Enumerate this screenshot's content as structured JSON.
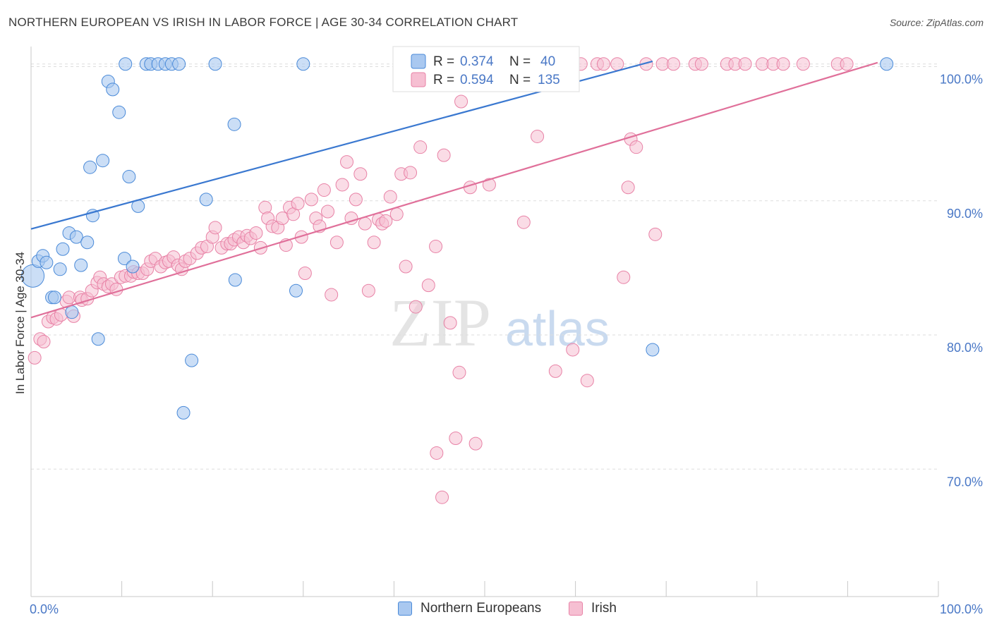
{
  "header": {
    "title": "NORTHERN EUROPEAN VS IRISH IN LABOR FORCE | AGE 30-34 CORRELATION CHART",
    "source": "Source: ZipAtlas.com"
  },
  "watermark": {
    "zip": "ZIP",
    "atlas": "atlas"
  },
  "colors": {
    "blue_fill": "#a9c8f0",
    "blue_stroke": "#4a8ad8",
    "blue_line": "#3a78d0",
    "pink_fill": "#f6bfd2",
    "pink_stroke": "#e882a6",
    "pink_line": "#e0709a",
    "tick_text": "#4a78c6",
    "grid": "#dddddd"
  },
  "legend": {
    "rows": [
      {
        "r_label": "R = ",
        "r_value": "0.374",
        "n_label": "N = ",
        "n_value": "40"
      },
      {
        "r_label": "R = ",
        "r_value": "0.594",
        "n_label": "N = ",
        "n_value": "135"
      }
    ]
  },
  "bottom_legend": [
    "Northern Europeans",
    "Irish"
  ],
  "chart_data": {
    "type": "scatter",
    "title": "NORTHERN EUROPEAN VS IRISH IN LABOR FORCE | AGE 30-34 CORRELATION CHART",
    "xlabel": "",
    "ylabel": "In Labor Force | Age 30-34",
    "xlim": [
      0,
      100
    ],
    "ylim": [
      60.5,
      101.5
    ],
    "x_tick_labels": [
      "0.0%",
      "100.0%"
    ],
    "y_ticks": [
      70,
      80,
      90,
      100
    ],
    "y_tick_labels": [
      "70.0%",
      "80.0%",
      "90.0%",
      "100.0%"
    ],
    "grid": true,
    "legend_position": "top-center",
    "series": [
      {
        "name": "Northern Europeans",
        "r": 0.374,
        "n": 40,
        "trend": {
          "x": [
            0,
            68.5
          ],
          "y": [
            87.9,
            100.4
          ]
        },
        "points": [
          [
            0.2,
            84.4,
            16
          ],
          [
            0.8,
            85.5,
            9
          ],
          [
            1.3,
            85.9,
            9
          ],
          [
            1.7,
            85.4,
            9
          ],
          [
            2.3,
            82.8,
            9
          ],
          [
            2.6,
            82.8,
            9
          ],
          [
            3.2,
            84.9,
            9
          ],
          [
            3.5,
            86.4,
            9
          ],
          [
            4.2,
            87.6,
            9
          ],
          [
            4.5,
            81.7,
            9
          ],
          [
            5.0,
            87.3,
            9
          ],
          [
            5.5,
            85.2,
            9
          ],
          [
            6.2,
            86.9,
            9
          ],
          [
            6.5,
            92.5,
            9
          ],
          [
            6.8,
            88.9,
            9
          ],
          [
            7.4,
            79.7,
            9
          ],
          [
            7.9,
            93.0,
            9
          ],
          [
            8.5,
            98.9,
            9
          ],
          [
            9.0,
            98.3,
            9
          ],
          [
            9.7,
            96.6,
            9
          ],
          [
            10.3,
            85.7,
            9
          ],
          [
            10.4,
            100.2,
            9
          ],
          [
            10.8,
            91.8,
            9
          ],
          [
            11.2,
            85.1,
            9
          ],
          [
            11.8,
            89.6,
            9
          ],
          [
            12.7,
            100.2,
            9
          ],
          [
            13.2,
            100.2,
            9
          ],
          [
            14.0,
            100.2,
            9
          ],
          [
            14.8,
            100.2,
            9
          ],
          [
            15.5,
            100.2,
            9
          ],
          [
            16.3,
            100.2,
            9
          ],
          [
            16.8,
            74.2,
            9
          ],
          [
            17.7,
            78.1,
            9
          ],
          [
            19.3,
            90.1,
            9
          ],
          [
            20.3,
            100.2,
            9
          ],
          [
            22.4,
            95.7,
            9
          ],
          [
            22.5,
            84.1,
            9
          ],
          [
            29.2,
            83.3,
            9
          ],
          [
            30.0,
            100.2,
            9
          ],
          [
            68.5,
            78.9,
            9
          ],
          [
            94.3,
            100.2,
            9
          ]
        ]
      },
      {
        "name": "Irish",
        "r": 0.594,
        "n": 135,
        "trend": {
          "x": [
            0,
            93.3
          ],
          "y": [
            81.3,
            100.3
          ]
        },
        "points": [
          [
            0.4,
            78.3
          ],
          [
            1.0,
            79.7
          ],
          [
            1.4,
            79.5
          ],
          [
            1.9,
            81.0
          ],
          [
            2.4,
            81.3
          ],
          [
            2.8,
            81.2
          ],
          [
            3.3,
            81.5
          ],
          [
            3.9,
            82.5
          ],
          [
            4.2,
            82.8
          ],
          [
            4.7,
            81.4
          ],
          [
            5.4,
            82.8
          ],
          [
            5.6,
            82.6
          ],
          [
            6.2,
            82.7
          ],
          [
            6.7,
            83.3
          ],
          [
            7.3,
            83.9
          ],
          [
            7.6,
            84.3
          ],
          [
            8.0,
            83.8
          ],
          [
            8.5,
            83.6
          ],
          [
            8.9,
            83.8
          ],
          [
            9.4,
            83.4
          ],
          [
            9.9,
            84.3
          ],
          [
            10.4,
            84.4
          ],
          [
            11.0,
            84.4
          ],
          [
            11.3,
            84.7
          ],
          [
            11.8,
            84.6
          ],
          [
            12.3,
            84.6
          ],
          [
            12.8,
            84.9
          ],
          [
            13.2,
            85.5
          ],
          [
            13.7,
            85.7
          ],
          [
            14.3,
            85.1
          ],
          [
            14.8,
            85.4
          ],
          [
            15.2,
            85.5
          ],
          [
            15.7,
            85.8
          ],
          [
            16.2,
            85.2
          ],
          [
            16.6,
            84.9
          ],
          [
            17.0,
            85.5
          ],
          [
            17.5,
            85.7
          ],
          [
            18.3,
            86.1
          ],
          [
            18.8,
            86.5
          ],
          [
            19.4,
            86.6
          ],
          [
            20.0,
            87.3
          ],
          [
            20.3,
            88.0
          ],
          [
            21.0,
            86.5
          ],
          [
            21.6,
            86.8
          ],
          [
            22.0,
            86.8
          ],
          [
            22.4,
            87.1
          ],
          [
            22.9,
            87.3
          ],
          [
            23.4,
            86.9
          ],
          [
            23.8,
            87.4
          ],
          [
            24.2,
            87.2
          ],
          [
            24.8,
            87.6
          ],
          [
            25.3,
            86.5
          ],
          [
            25.8,
            89.5
          ],
          [
            26.1,
            88.7
          ],
          [
            26.6,
            88.1
          ],
          [
            27.2,
            88.0
          ],
          [
            27.7,
            88.7
          ],
          [
            28.1,
            86.7
          ],
          [
            28.5,
            89.5
          ],
          [
            28.9,
            89.0
          ],
          [
            29.4,
            89.8
          ],
          [
            29.8,
            87.3
          ],
          [
            30.2,
            84.6
          ],
          [
            30.9,
            90.1
          ],
          [
            31.4,
            88.7
          ],
          [
            31.8,
            88.1
          ],
          [
            32.3,
            90.8
          ],
          [
            32.7,
            89.2
          ],
          [
            33.1,
            83.0
          ],
          [
            33.7,
            86.9
          ],
          [
            34.3,
            91.2
          ],
          [
            34.8,
            92.9
          ],
          [
            35.3,
            88.7
          ],
          [
            35.8,
            90.1
          ],
          [
            36.3,
            92.0
          ],
          [
            36.8,
            88.3
          ],
          [
            37.2,
            83.3
          ],
          [
            37.8,
            86.9
          ],
          [
            38.3,
            88.6
          ],
          [
            38.7,
            88.3
          ],
          [
            39.1,
            88.5
          ],
          [
            39.6,
            90.3
          ],
          [
            40.3,
            89.0
          ],
          [
            40.8,
            92.0
          ],
          [
            41.3,
            85.1
          ],
          [
            41.8,
            92.1
          ],
          [
            42.4,
            82.1
          ],
          [
            42.9,
            94.0
          ],
          [
            43.8,
            83.7
          ],
          [
            44.6,
            86.6
          ],
          [
            45.5,
            93.4
          ],
          [
            46.2,
            80.9
          ],
          [
            47.2,
            77.2
          ],
          [
            47.4,
            97.4
          ],
          [
            48.4,
            91.0
          ],
          [
            49.6,
            100.2
          ],
          [
            50.5,
            91.2
          ],
          [
            51.4,
            100.2
          ],
          [
            52.2,
            100.2
          ],
          [
            53.6,
            100.2
          ],
          [
            54.3,
            88.4
          ],
          [
            55.1,
            100.2
          ],
          [
            55.8,
            94.8
          ],
          [
            57.2,
            100.2
          ],
          [
            57.8,
            77.3
          ],
          [
            58.9,
            100.2
          ],
          [
            59.7,
            100.2
          ],
          [
            60.6,
            100.2
          ],
          [
            61.3,
            76.6
          ],
          [
            62.4,
            100.2
          ],
          [
            63.1,
            100.2
          ],
          [
            64.6,
            100.2
          ],
          [
            65.3,
            84.3
          ],
          [
            65.8,
            91.0
          ],
          [
            66.1,
            94.6
          ],
          [
            66.7,
            94.0
          ],
          [
            67.8,
            100.2
          ],
          [
            68.8,
            87.5
          ],
          [
            69.6,
            100.2
          ],
          [
            70.8,
            100.2
          ],
          [
            73.2,
            100.2
          ],
          [
            73.9,
            100.2
          ],
          [
            76.7,
            100.2
          ],
          [
            77.6,
            100.2
          ],
          [
            78.7,
            100.2
          ],
          [
            80.6,
            100.2
          ],
          [
            81.8,
            100.2
          ],
          [
            82.9,
            100.2
          ],
          [
            85.1,
            100.2
          ],
          [
            88.9,
            100.2
          ],
          [
            89.9,
            100.2
          ],
          [
            59.7,
            78.9
          ],
          [
            46.8,
            72.3
          ],
          [
            49.0,
            71.9
          ],
          [
            44.7,
            71.2
          ],
          [
            45.3,
            67.9
          ]
        ]
      }
    ]
  }
}
